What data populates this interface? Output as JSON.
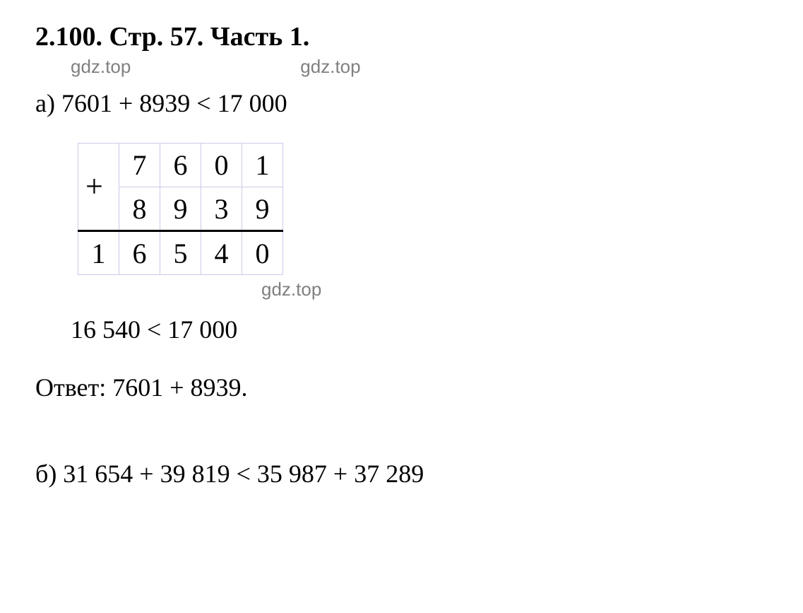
{
  "heading": "2.100. Стр. 57. Часть 1.",
  "watermarks": {
    "w1": "gdz.top",
    "w2": "gdz.top",
    "w3": "gdz.top"
  },
  "problem_a": {
    "expression": "а) 7601 + 8939 < 17 000",
    "comparison": "16 540 < 17 000",
    "answer": "Ответ: 7601 + 8939."
  },
  "addition_table": {
    "plus_symbol": "+",
    "row1": [
      "",
      "7",
      "6",
      "0",
      "1"
    ],
    "row2": [
      "",
      "8",
      "9",
      "3",
      "9"
    ],
    "row3": [
      "1",
      "6",
      "5",
      "4",
      "0"
    ]
  },
  "problem_b": {
    "expression": "б) 31 654 + 39 819 < 35 987 + 37 289"
  },
  "colors": {
    "text": "#000000",
    "watermark": "#808080",
    "grid": "#d0c8e8",
    "background": "#ffffff"
  },
  "fonts": {
    "heading_size": 38,
    "body_size": 36,
    "watermark_size": 26,
    "cell_size": 40
  }
}
